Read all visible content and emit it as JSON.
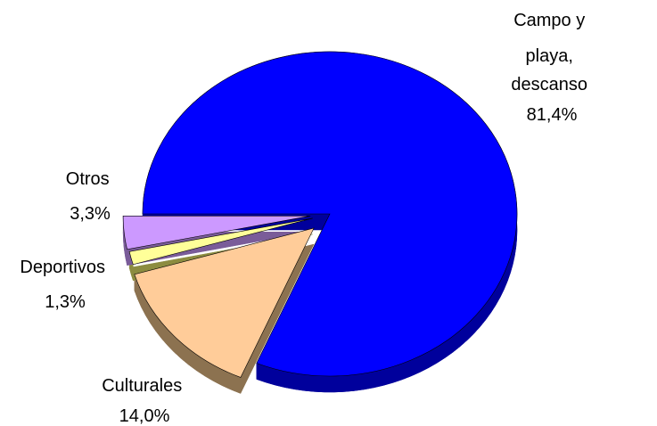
{
  "chart_data": {
    "type": "pie",
    "title": "",
    "slices": [
      {
        "label_lines": [
          "Campo y",
          "playa,",
          "descanso"
        ],
        "value_label": "81,4%",
        "value": 81.4,
        "color": "#0000ff",
        "side": "#00009c",
        "exploded": false
      },
      {
        "label_lines": [
          "Culturales"
        ],
        "value_label": "14,0%",
        "value": 14.0,
        "color": "#ffcc99",
        "side": "#8c7250",
        "exploded": true
      },
      {
        "label_lines": [
          "Deportivos"
        ],
        "value_label": "1,3%",
        "value": 1.3,
        "color": "#ffff99",
        "side": "#8c8c40",
        "exploded": true
      },
      {
        "label_lines": [
          "Otros"
        ],
        "value_label": "3,3%",
        "value": 3.3,
        "color": "#cc99ff",
        "side": "#7a5c99",
        "exploded": true
      }
    ],
    "legend": "none"
  }
}
